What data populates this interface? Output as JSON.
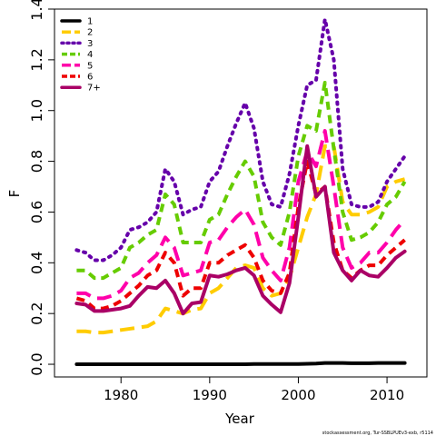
{
  "chart_data": {
    "type": "line",
    "xlabel": "Year",
    "ylabel": "F",
    "xlim": [
      1972.5,
      2014.5
    ],
    "ylim": [
      -0.05,
      1.4
    ],
    "x_ticks": [
      1980,
      1990,
      2000,
      2010
    ],
    "x_tick_labels": [
      "1980",
      "1990",
      "2000",
      "2010"
    ],
    "y_ticks": [
      0.0,
      0.2,
      0.4,
      0.6,
      0.8,
      1.0,
      1.2,
      1.4
    ],
    "y_tick_labels": [
      "0.0",
      "0.2",
      "0.4",
      "0.6",
      "0.8",
      "1.0",
      "1.2",
      "1.4"
    ],
    "grid": false,
    "legend_position": "top-left",
    "x": [
      1975,
      1976,
      1977,
      1978,
      1979,
      1980,
      1981,
      1982,
      1983,
      1984,
      1985,
      1986,
      1987,
      1988,
      1989,
      1990,
      1991,
      1992,
      1993,
      1994,
      1995,
      1996,
      1997,
      1998,
      1999,
      2000,
      2001,
      2002,
      2003,
      2004,
      2005,
      2006,
      2007,
      2008,
      2009,
      2010,
      2011,
      2012
    ],
    "series": [
      {
        "name": "1",
        "color": "#000000",
        "dash": "solid",
        "values": [
          0.0,
          0.0,
          0.0,
          0.0,
          0.0,
          0.0,
          0.0,
          0.0,
          0.0,
          0.0,
          0.0,
          0.0,
          0.0,
          0.0,
          0.0,
          0.0,
          0.0,
          0.0,
          0.0,
          0.0,
          0.001,
          0.001,
          0.001,
          0.001,
          0.001,
          0.001,
          0.002,
          0.003,
          0.005,
          0.005,
          0.005,
          0.004,
          0.004,
          0.004,
          0.005,
          0.005,
          0.005,
          0.005
        ]
      },
      {
        "name": "2",
        "color": "#FFCC00",
        "dash": "long",
        "values": [
          0.13,
          0.13,
          0.125,
          0.125,
          0.13,
          0.135,
          0.14,
          0.145,
          0.15,
          0.17,
          0.22,
          0.21,
          0.2,
          0.215,
          0.22,
          0.28,
          0.3,
          0.34,
          0.38,
          0.39,
          0.38,
          0.3,
          0.27,
          0.28,
          0.34,
          0.46,
          0.58,
          0.67,
          0.86,
          0.86,
          0.64,
          0.59,
          0.59,
          0.6,
          0.62,
          0.7,
          0.72,
          0.73
        ]
      },
      {
        "name": "3",
        "color": "#6600AA",
        "dash": "dot",
        "values": [
          0.45,
          0.44,
          0.41,
          0.41,
          0.43,
          0.46,
          0.53,
          0.54,
          0.56,
          0.6,
          0.77,
          0.72,
          0.59,
          0.61,
          0.62,
          0.72,
          0.76,
          0.86,
          0.95,
          1.03,
          0.93,
          0.72,
          0.63,
          0.62,
          0.75,
          0.94,
          1.1,
          1.12,
          1.36,
          1.2,
          0.77,
          0.63,
          0.62,
          0.62,
          0.64,
          0.72,
          0.77,
          0.82
        ]
      },
      {
        "name": "4",
        "color": "#66CC00",
        "dash": "dash",
        "values": [
          0.37,
          0.37,
          0.34,
          0.34,
          0.36,
          0.38,
          0.46,
          0.48,
          0.51,
          0.53,
          0.67,
          0.63,
          0.48,
          0.48,
          0.48,
          0.57,
          0.59,
          0.67,
          0.74,
          0.8,
          0.74,
          0.56,
          0.5,
          0.47,
          0.6,
          0.82,
          0.94,
          0.92,
          1.11,
          0.85,
          0.6,
          0.49,
          0.5,
          0.52,
          0.56,
          0.63,
          0.66,
          0.72
        ]
      },
      {
        "name": "5",
        "color": "#FF00AA",
        "dash": "long",
        "values": [
          0.28,
          0.28,
          0.26,
          0.26,
          0.27,
          0.29,
          0.34,
          0.36,
          0.4,
          0.43,
          0.5,
          0.46,
          0.35,
          0.36,
          0.37,
          0.48,
          0.49,
          0.54,
          0.58,
          0.61,
          0.55,
          0.42,
          0.37,
          0.33,
          0.46,
          0.72,
          0.84,
          0.78,
          0.92,
          0.7,
          0.46,
          0.38,
          0.4,
          0.44,
          0.44,
          0.48,
          0.53,
          0.57
        ]
      },
      {
        "name": "6",
        "color": "#EE0000",
        "dash": "dash",
        "values": [
          0.26,
          0.25,
          0.22,
          0.22,
          0.23,
          0.25,
          0.28,
          0.31,
          0.35,
          0.37,
          0.44,
          0.4,
          0.27,
          0.3,
          0.3,
          0.4,
          0.4,
          0.43,
          0.45,
          0.47,
          0.42,
          0.33,
          0.29,
          0.28,
          0.36,
          0.62,
          0.8,
          0.67,
          0.7,
          0.48,
          0.37,
          0.34,
          0.37,
          0.39,
          0.39,
          0.43,
          0.46,
          0.49
        ]
      },
      {
        "name": "7+",
        "color": "#AA0066",
        "dash": "solid",
        "values": [
          0.24,
          0.235,
          0.21,
          0.21,
          0.215,
          0.22,
          0.23,
          0.27,
          0.305,
          0.3,
          0.33,
          0.28,
          0.2,
          0.24,
          0.245,
          0.35,
          0.345,
          0.355,
          0.37,
          0.38,
          0.35,
          0.27,
          0.235,
          0.205,
          0.32,
          0.58,
          0.86,
          0.66,
          0.7,
          0.44,
          0.37,
          0.33,
          0.37,
          0.35,
          0.345,
          0.38,
          0.42,
          0.445
        ]
      }
    ],
    "source_note": "stockassessment.org, Tur-SSBLPUEv3-exb, r5114"
  }
}
